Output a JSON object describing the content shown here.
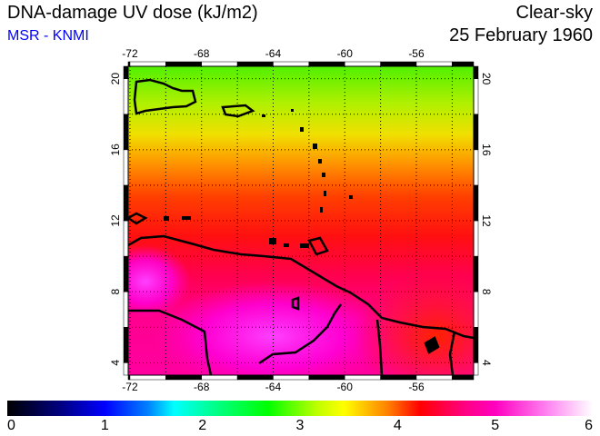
{
  "header": {
    "title": "DNA-damage UV dose (kJ/m2)",
    "credit": "MSR - KNMI",
    "condition": "Clear-sky",
    "date": "25 February 1960"
  },
  "map": {
    "lon_labels": [
      "-72",
      "-68",
      "-64",
      "-60",
      "-56"
    ],
    "lon_values": [
      -72,
      -68,
      -64,
      -60,
      -56
    ],
    "lat_labels": [
      "4",
      "8",
      "12",
      "16",
      "20"
    ],
    "lat_values": [
      4,
      8,
      12,
      16,
      20
    ],
    "lon_range": [
      -72.1,
      -52.8
    ],
    "lat_range": [
      3.3,
      20.7
    ]
  },
  "colorbar": {
    "labels": [
      "0",
      "1",
      "2",
      "3",
      "4",
      "5",
      "6"
    ],
    "range": [
      0,
      6
    ]
  }
}
